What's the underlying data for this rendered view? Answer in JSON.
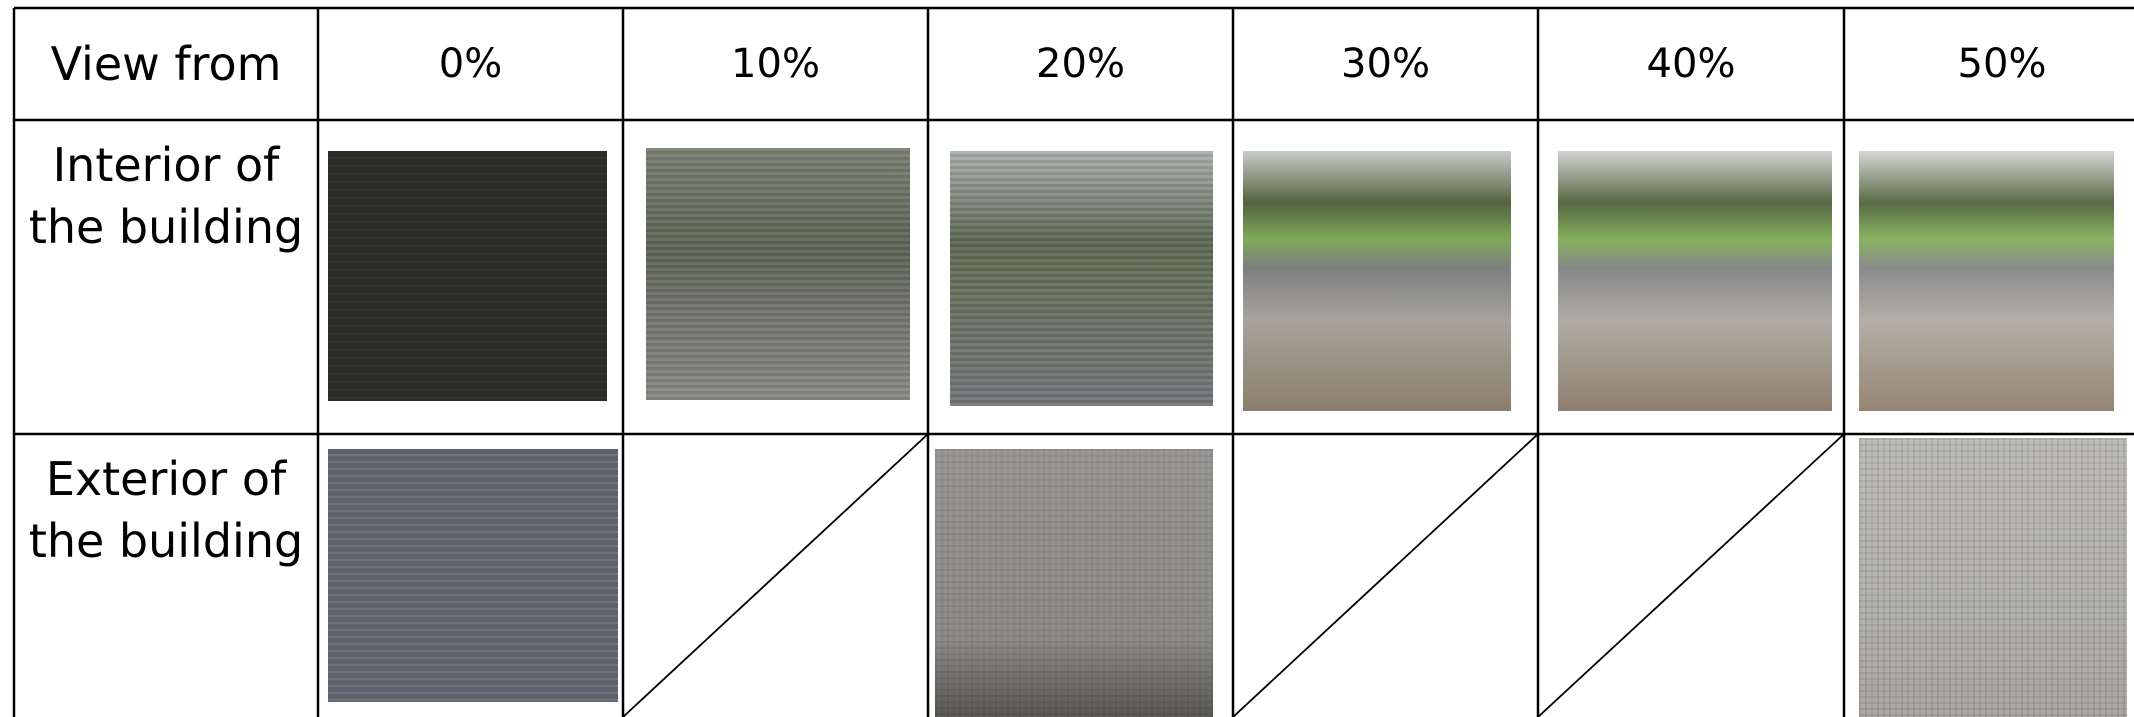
{
  "table": {
    "header": [
      "View from",
      "0%",
      "10%",
      "20%",
      "30%",
      "40%",
      "50%"
    ],
    "rows": [
      {
        "label": "Interior of the building"
      },
      {
        "label": "Exterior of the building"
      }
    ]
  }
}
